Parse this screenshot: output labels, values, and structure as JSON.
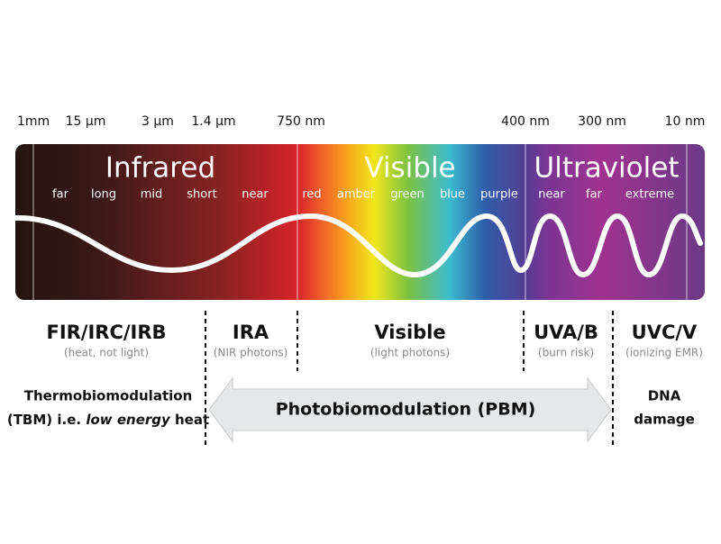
{
  "wavelengths": [
    "1mm",
    "15 µm",
    "3 µm",
    "1.4 µm",
    "750 nm",
    "400 nm",
    "300 nm",
    "10 nm"
  ],
  "spectrum": {
    "infrared": {
      "title": "Infrared",
      "bands": [
        "far",
        "long",
        "mid",
        "short",
        "near"
      ]
    },
    "visible": {
      "title": "Visible",
      "bands": [
        "red",
        "amber",
        "green",
        "blue",
        "purple"
      ]
    },
    "ultraviolet": {
      "title": "Ultraviolet",
      "bands": [
        "near",
        "far",
        "extreme"
      ]
    }
  },
  "categories": [
    {
      "name": "FIR/IRC/IRB",
      "note": "(heat, not light)"
    },
    {
      "name": "IRA",
      "note": "(NIR photons)"
    },
    {
      "name": "Visible",
      "note": "(light photons)"
    },
    {
      "name": "UVA/B",
      "note": "(burn risk)"
    },
    {
      "name": "UVC/V",
      "note": "(ionizing EMR)"
    }
  ],
  "effects": {
    "tbm": {
      "line1": "Thermobiomodulation",
      "line2_prefix": "(TBM) i.e. ",
      "line2_italic": "low energy",
      "line2_suffix": " heat"
    },
    "pbm": "Photobiomodulation (PBM)",
    "dna": {
      "line1": "DNA",
      "line2": "damage"
    }
  }
}
